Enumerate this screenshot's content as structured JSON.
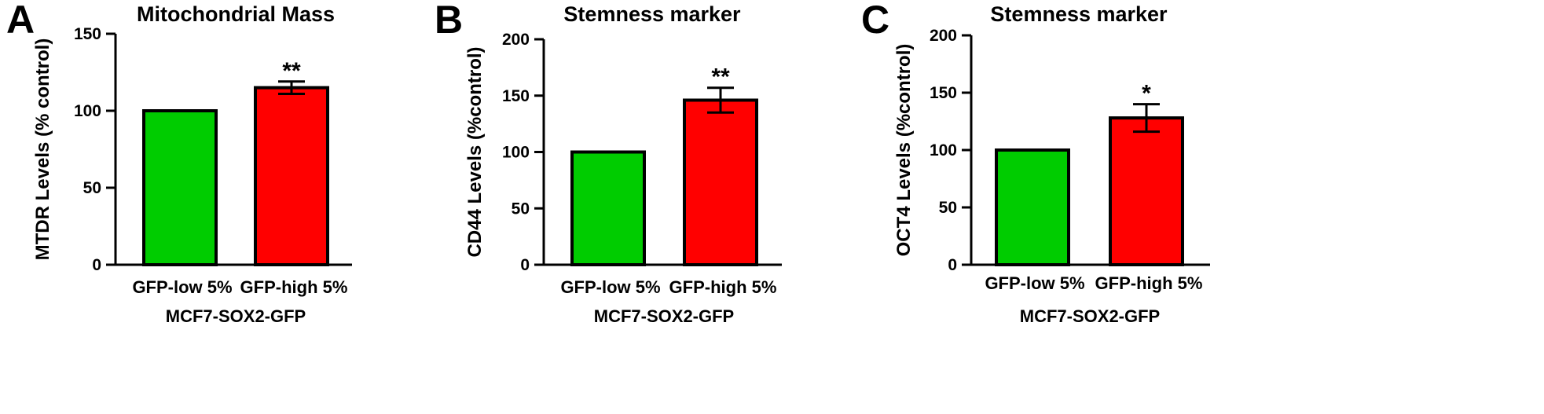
{
  "chart_data": [
    {
      "panel": "A",
      "type": "bar",
      "title": "Mitochondrial Mass",
      "ylabel": "MTDR Levels (% control)",
      "xlabel": "MCF7-SOX2-GFP",
      "categories": [
        "GFP-low 5%",
        "GFP-high 5%"
      ],
      "values": [
        100,
        115
      ],
      "errors": [
        0,
        4
      ],
      "significance": [
        "",
        "**"
      ],
      "colors": [
        "#00cc00",
        "#ff0000"
      ],
      "ylim": [
        0,
        150
      ],
      "yticks": [
        0,
        50,
        100,
        150
      ]
    },
    {
      "panel": "B",
      "type": "bar",
      "title": "Stemness marker",
      "ylabel": "CD44 Levels (%control)",
      "xlabel": "MCF7-SOX2-GFP",
      "categories": [
        "GFP-low 5%",
        "GFP-high 5%"
      ],
      "values": [
        100,
        146
      ],
      "errors": [
        0,
        11
      ],
      "significance": [
        "",
        "**"
      ],
      "colors": [
        "#00cc00",
        "#ff0000"
      ],
      "ylim": [
        0,
        200
      ],
      "yticks": [
        0,
        50,
        100,
        150,
        200
      ]
    },
    {
      "panel": "C",
      "type": "bar",
      "title": "Stemness marker",
      "ylabel": "OCT4 Levels (%control)",
      "xlabel": "MCF7-SOX2-GFP",
      "categories": [
        "GFP-low 5%",
        "GFP-high 5%"
      ],
      "values": [
        100,
        128
      ],
      "errors": [
        0,
        12
      ],
      "significance": [
        "",
        "*"
      ],
      "colors": [
        "#00cc00",
        "#ff0000"
      ],
      "ylim": [
        0,
        200
      ],
      "yticks": [
        0,
        50,
        100,
        150,
        200
      ]
    }
  ]
}
